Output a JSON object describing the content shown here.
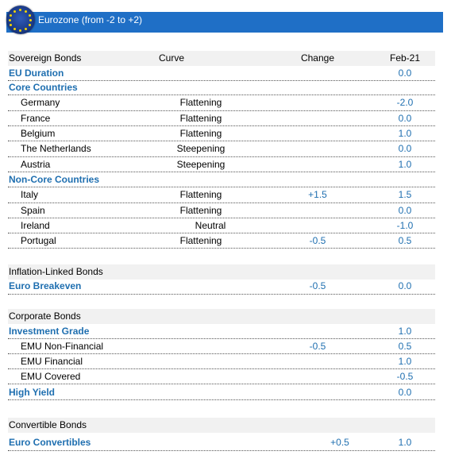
{
  "header": {
    "title": "Eurozone (from -2 to +2)"
  },
  "columns": {
    "category": "Sovereign Bonds",
    "curve": "Curve",
    "change": "Change",
    "period": "Feb-21"
  },
  "sovereign": {
    "eu_duration": {
      "label": "EU Duration",
      "value": "0.0"
    },
    "core_title": "Core Countries",
    "core": [
      {
        "name": "Germany",
        "curve": "Flattening",
        "change": "",
        "value": "-2.0"
      },
      {
        "name": "France",
        "curve": "Flattening",
        "change": "",
        "value": "0.0"
      },
      {
        "name": "Belgium",
        "curve": "Flattening",
        "change": "",
        "value": "1.0"
      },
      {
        "name": "The Netherlands",
        "curve": "Steepening",
        "change": "",
        "value": "0.0"
      },
      {
        "name": "Austria",
        "curve": "Steepening",
        "change": "",
        "value": "1.0"
      }
    ],
    "noncore_title": "Non-Core  Countries",
    "noncore": [
      {
        "name": "Italy",
        "curve": "Flattening",
        "change": "+1.5",
        "value": "1.5"
      },
      {
        "name": "Spain",
        "curve": "Flattening",
        "change": "",
        "value": "0.0"
      },
      {
        "name": "Ireland",
        "curve": "Neutral",
        "change": "",
        "value": "-1.0"
      },
      {
        "name": "Portugal",
        "curve": "Flattening",
        "change": "-0.5",
        "value": "0.5"
      }
    ]
  },
  "inflation": {
    "title": "Inflation-Linked Bonds",
    "rows": [
      {
        "name": "Euro Breakeven",
        "change": "-0.5",
        "value": "0.0"
      }
    ]
  },
  "corporate": {
    "title": "Corporate Bonds",
    "investment_grade": {
      "name": "Investment Grade",
      "value": "1.0"
    },
    "ig_rows": [
      {
        "name": "EMU Non-Financial",
        "change": "-0.5",
        "value": "0.5"
      },
      {
        "name": "EMU Financial",
        "change": "",
        "value": "1.0"
      },
      {
        "name": "EMU Covered",
        "change": "",
        "value": "-0.5"
      }
    ],
    "high_yield": {
      "name": "High Yield",
      "value": "0.0"
    }
  },
  "convertible": {
    "title": "Convertible Bonds",
    "rows": [
      {
        "name": "Euro Convertibles",
        "change": "+0.5",
        "value": "1.0"
      }
    ]
  }
}
